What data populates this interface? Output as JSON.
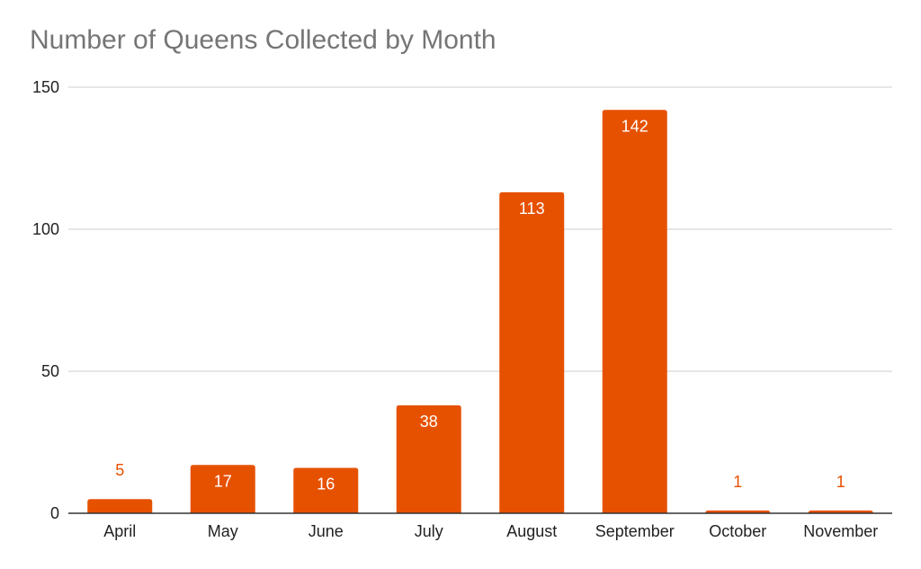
{
  "chart_data": {
    "type": "bar",
    "title": "Number of Queens Collected by Month",
    "xlabel": "",
    "ylabel": "",
    "categories": [
      "April",
      "May",
      "June",
      "July",
      "August",
      "September",
      "October",
      "November"
    ],
    "values": [
      5,
      17,
      16,
      38,
      113,
      142,
      1,
      1
    ],
    "ylim": [
      0,
      150
    ],
    "yticks": [
      0,
      50,
      100,
      150
    ],
    "grid": true,
    "legend": "none",
    "data_labels": true,
    "colors": {
      "bar": "#e65100",
      "label_inside": "#ffffff",
      "label_outside": "#e65100",
      "grid": "#cccccc",
      "axis": "#333333",
      "title": "#757575"
    }
  }
}
